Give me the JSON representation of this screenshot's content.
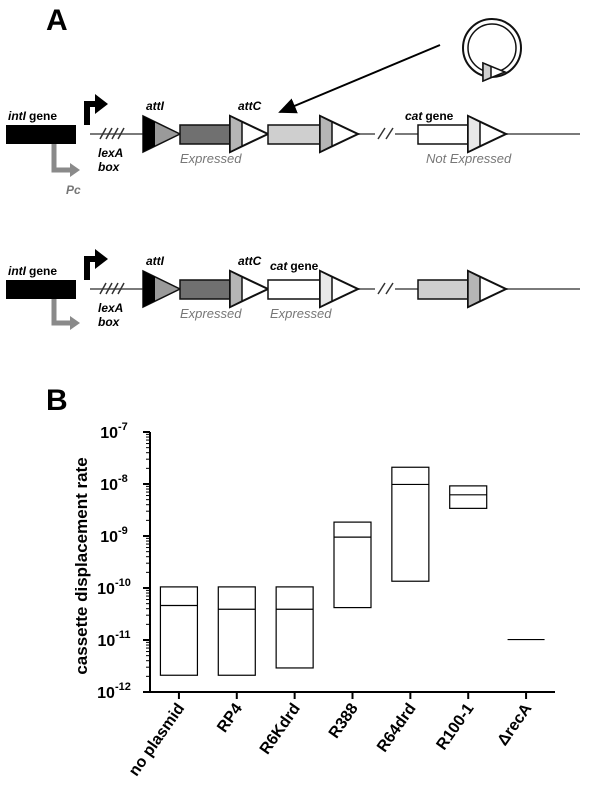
{
  "panel_a": {
    "label": "A",
    "top": {
      "intI_italic": "intI",
      "gene_word": "gene",
      "lexA_italic": "lexA",
      "box_word": "box",
      "pc": "Pc",
      "attI": "attI",
      "attC": "attC",
      "cat_italic": "cat",
      "expressed": "Expressed",
      "not_expressed": "Not Expressed"
    },
    "bottom": {
      "intI_italic": "intI",
      "gene_word": "gene",
      "lexA_italic": "lexA",
      "box_word": "box",
      "attI": "attI",
      "attC": "attC",
      "cat_italic": "cat",
      "expressed_1": "Expressed",
      "expressed_2": "Expressed"
    }
  },
  "colors": {
    "intI_block": "#000000",
    "cassette_dark": "#707070",
    "cassette_light": "#cfcfcf",
    "cassette_white": "#ffffff",
    "attC_fill": "#b5b5b5",
    "line": "#7a7a7a",
    "promoter_gray": "#8a8a8a"
  },
  "panel_b": {
    "label": "B"
  },
  "chart_data": {
    "type": "box",
    "ylabel": "cassette displacement rate",
    "yscale": "log",
    "ylim": [
      1e-12,
      1e-07
    ],
    "yticks": [
      {
        "value": 1e-07,
        "base": "10",
        "exp": "-7"
      },
      {
        "value": 1e-08,
        "base": "10",
        "exp": "-8"
      },
      {
        "value": 1e-09,
        "base": "10",
        "exp": "-9"
      },
      {
        "value": 1e-10,
        "base": "10",
        "exp": "-10"
      },
      {
        "value": 1e-11,
        "base": "10",
        "exp": "-11"
      },
      {
        "value": 1e-12,
        "base": "10",
        "exp": "-12"
      }
    ],
    "categories": [
      "no plasmid",
      "RP4",
      "R6Kdrd",
      "R388",
      "R64drd",
      "R100-1",
      "ΔrecA"
    ],
    "boxes": [
      {
        "low": 2.1e-12,
        "mid": 4.6e-11,
        "high": 1.05e-10
      },
      {
        "low": 2.1e-12,
        "mid": 3.9e-11,
        "high": 1.05e-10
      },
      {
        "low": 2.9e-12,
        "mid": 3.9e-11,
        "high": 1.05e-10
      },
      {
        "low": 4.2e-11,
        "mid": 9.5e-10,
        "high": 1.85e-09
      },
      {
        "low": 1.35e-10,
        "mid": 9.8e-09,
        "high": 2.1e-08
      },
      {
        "low": 3.4e-09,
        "mid": 6.2e-09,
        "high": 9.2e-09
      },
      {
        "low": 1.02e-11,
        "mid": 1.02e-11,
        "high": 1.02e-11
      }
    ]
  }
}
